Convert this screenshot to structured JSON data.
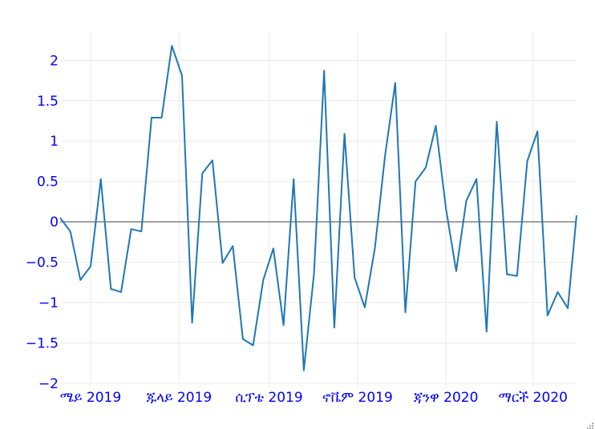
{
  "chart_data": {
    "type": "line",
    "title": "",
    "xlabel": "",
    "ylabel": "",
    "ylim": [
      -2.05,
      2.35
    ],
    "xlim": [
      "2019-04-10",
      "2020-03-31"
    ],
    "y_ticks": [
      {
        "value": -2,
        "label": "−2"
      },
      {
        "value": -1.5,
        "label": "−1.5"
      },
      {
        "value": -1,
        "label": "−1"
      },
      {
        "value": -0.5,
        "label": "−0.5"
      },
      {
        "value": 0,
        "label": "0"
      },
      {
        "value": 0.5,
        "label": "0.5"
      },
      {
        "value": 1,
        "label": "1"
      },
      {
        "value": 1.5,
        "label": "1.5"
      },
      {
        "value": 2,
        "label": "2"
      }
    ],
    "x_ticks": [
      {
        "date": "2019-05-01",
        "label": "ሜይ 2019"
      },
      {
        "date": "2019-07-01",
        "label": "ጁላይ 2019"
      },
      {
        "date": "2019-09-01",
        "label": "ሲፕቴ 2019"
      },
      {
        "date": "2019-11-01",
        "label": "ኖቬም 2019"
      },
      {
        "date": "2020-01-01",
        "label": "ጃንዋ 2020"
      },
      {
        "date": "2020-03-01",
        "label": "ማርች 2020"
      }
    ],
    "grid": true,
    "zero_line": true,
    "legend": "none",
    "series": [
      {
        "color": "#1f77b4",
        "x": [
          "2019-04-10",
          "2019-04-17",
          "2019-04-24",
          "2019-05-01",
          "2019-05-08",
          "2019-05-15",
          "2019-05-22",
          "2019-05-29",
          "2019-06-05",
          "2019-06-12",
          "2019-06-19",
          "2019-06-26",
          "2019-07-03",
          "2019-07-10",
          "2019-07-17",
          "2019-07-24",
          "2019-07-31",
          "2019-08-07",
          "2019-08-14",
          "2019-08-21",
          "2019-08-28",
          "2019-09-04",
          "2019-09-11",
          "2019-09-18",
          "2019-09-25",
          "2019-10-02",
          "2019-10-09",
          "2019-10-16",
          "2019-10-23",
          "2019-10-30",
          "2019-11-06",
          "2019-11-13",
          "2019-11-20",
          "2019-11-27",
          "2019-12-04",
          "2019-12-11",
          "2019-12-18",
          "2019-12-25",
          "2020-01-01",
          "2020-01-08",
          "2020-01-15",
          "2020-01-22",
          "2020-01-29",
          "2020-02-05",
          "2020-02-12",
          "2020-02-19",
          "2020-02-26",
          "2020-03-04",
          "2020-03-11",
          "2020-03-18",
          "2020-03-25",
          "2020-03-31"
        ],
        "values": [
          0.05,
          -0.12,
          -0.72,
          -0.55,
          0.53,
          -0.83,
          -0.87,
          -0.09,
          -0.12,
          1.29,
          1.29,
          2.18,
          1.81,
          -1.25,
          0.6,
          0.76,
          -0.51,
          -0.3,
          -1.45,
          -1.53,
          -0.72,
          -0.33,
          -1.28,
          0.53,
          -1.84,
          -0.64,
          1.87,
          -1.31,
          1.09,
          -0.69,
          -1.06,
          -0.32,
          0.82,
          1.72,
          -1.12,
          0.5,
          0.67,
          1.19,
          0.16,
          -0.61,
          0.26,
          0.53,
          -1.36,
          1.24,
          -0.65,
          -0.67,
          0.75,
          1.12,
          -1.16,
          -0.87,
          -1.07,
          0.08
        ]
      }
    ]
  },
  "colors": {
    "line": "#1f77b4",
    "tick_label": "#0000ff",
    "grid": "#ebebeb",
    "zero_line": "#444444"
  }
}
